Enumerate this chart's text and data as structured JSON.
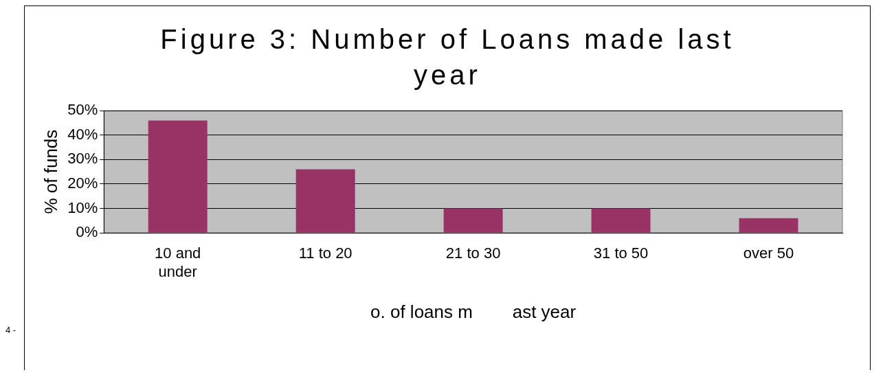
{
  "chart_data": {
    "type": "bar",
    "title": "Figure 3: Number of Loans made last year",
    "ylabel": "% of funds",
    "xlabel": "o. of loans m        ast year",
    "categories": [
      "10 and under",
      "11 to 20",
      "21 to 30",
      "31 to 50",
      "over 50"
    ],
    "values": [
      46,
      26,
      10,
      10,
      6
    ],
    "color": "#993366",
    "ylim": [
      0,
      50
    ],
    "yticks": [
      {
        "value": 0,
        "label": "0%"
      },
      {
        "value": 10,
        "label": "10%"
      },
      {
        "value": 20,
        "label": "20%"
      },
      {
        "value": 30,
        "label": "30%"
      },
      {
        "value": 40,
        "label": "40%"
      },
      {
        "value": 50,
        "label": "50%"
      }
    ],
    "grid": "y",
    "legend": false,
    "annotations": [
      "4 -"
    ]
  }
}
